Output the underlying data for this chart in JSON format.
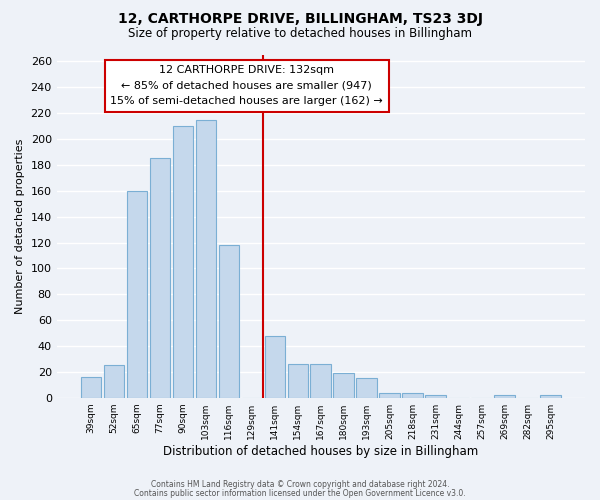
{
  "title": "12, CARTHORPE DRIVE, BILLINGHAM, TS23 3DJ",
  "subtitle": "Size of property relative to detached houses in Billingham",
  "xlabel": "Distribution of detached houses by size in Billingham",
  "ylabel": "Number of detached properties",
  "bar_labels": [
    "39sqm",
    "52sqm",
    "65sqm",
    "77sqm",
    "90sqm",
    "103sqm",
    "116sqm",
    "129sqm",
    "141sqm",
    "154sqm",
    "167sqm",
    "180sqm",
    "193sqm",
    "205sqm",
    "218sqm",
    "231sqm",
    "244sqm",
    "257sqm",
    "269sqm",
    "282sqm",
    "295sqm"
  ],
  "bar_values": [
    16,
    25,
    160,
    185,
    210,
    215,
    118,
    0,
    48,
    26,
    26,
    19,
    15,
    4,
    4,
    2,
    0,
    0,
    2,
    0,
    2
  ],
  "bar_color": "#c5d8ec",
  "bar_edge_color": "#7bafd4",
  "vline_x_label": "129sqm",
  "vline_color": "#cc0000",
  "annotation_title": "12 CARTHORPE DRIVE: 132sqm",
  "annotation_line1": "← 85% of detached houses are smaller (947)",
  "annotation_line2": "15% of semi-detached houses are larger (162) →",
  "annotation_box_facecolor": "#ffffff",
  "annotation_box_edgecolor": "#cc0000",
  "ylim": [
    0,
    265
  ],
  "yticks": [
    0,
    20,
    40,
    60,
    80,
    100,
    120,
    140,
    160,
    180,
    200,
    220,
    240,
    260
  ],
  "footer1": "Contains HM Land Registry data © Crown copyright and database right 2024.",
  "footer2": "Contains public sector information licensed under the Open Government Licence v3.0.",
  "background_color": "#eef2f8",
  "grid_color": "#ffffff"
}
